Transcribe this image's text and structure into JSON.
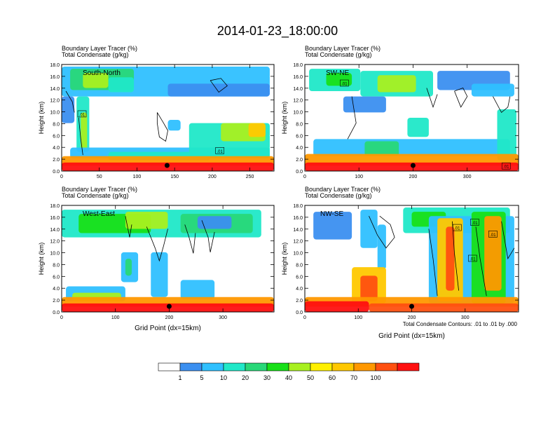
{
  "title": "2014-01-23_18:00:00",
  "footnote": "Total Condensate Contours: .01 to .01 by .000",
  "colors": [
    "#ffffff",
    "#3b8ff0",
    "#2fc0ff",
    "#20e8c8",
    "#28d878",
    "#18e018",
    "#a8f020",
    "#fff000",
    "#ffc800",
    "#ff9800",
    "#ff5010",
    "#ff1010"
  ],
  "colorbar": {
    "labels": [
      "1",
      "5",
      "10",
      "20",
      "30",
      "40",
      "50",
      "60",
      "70",
      "100"
    ]
  },
  "chart_data": [
    {
      "type": "heatmap",
      "name": "South-North",
      "label1": "Boundary Layer Tracer   (%)",
      "label2": "Total Condensate   (g/kg)",
      "ylabel": "Height (km)",
      "xlabel": "",
      "xlim": [
        0,
        282
      ],
      "ylim": [
        0,
        18
      ],
      "xticks": [
        "0",
        "50",
        "100",
        "150",
        "200",
        "250"
      ],
      "yticks": [
        "0.0",
        "2.0",
        "4.0",
        "6.0",
        "8.0",
        "10.0",
        "12.0",
        "14.0",
        "16.0",
        "18.0"
      ],
      "marker": 140,
      "contour_labels": [
        {
          "text": ".01",
          "x": 27,
          "y": 9.6
        },
        {
          "text": ".01",
          "x": 210,
          "y": 3.4
        }
      ]
    },
    {
      "type": "heatmap",
      "name": "SW-NE",
      "label1": "Boundary Layer Tracer   (%)",
      "label2": "Total Condensate   (g/kg)",
      "ylabel": "Height (km)",
      "xlabel": "",
      "xlim": [
        0,
        395
      ],
      "ylim": [
        0,
        18
      ],
      "xticks": [
        "0",
        "100",
        "200",
        "300"
      ],
      "yticks": [
        "0.0",
        "2.0",
        "4.0",
        "6.0",
        "8.0",
        "10.0",
        "12.0",
        "14.0",
        "16.0",
        "18.0"
      ],
      "marker": 200,
      "contour_labels": [
        {
          "text": ".01",
          "x": 73,
          "y": 14.8
        },
        {
          "text": ".01",
          "x": 372,
          "y": 0.8
        }
      ]
    },
    {
      "type": "heatmap",
      "name": "West-East",
      "label1": "Boundary Layer Tracer   (%)",
      "label2": "Total Condensate   (g/kg)",
      "ylabel": "Height (km)",
      "xlabel": "Grid Point (dx=15km)",
      "xlim": [
        0,
        395
      ],
      "ylim": [
        0,
        18
      ],
      "xticks": [
        "0",
        "100",
        "200",
        "300"
      ],
      "yticks": [
        "0.0",
        "2.0",
        "4.0",
        "6.0",
        "8.0",
        "10.0",
        "12.0",
        "14.0",
        "16.0",
        "18.0"
      ],
      "marker": 200,
      "contour_labels": []
    },
    {
      "type": "heatmap",
      "name": "NW-SE",
      "label1": "Boundary Layer Tracer   (%)",
      "label2": "Total Condensate   (g/kg)",
      "ylabel": "Height (km)",
      "xlabel": "Grid Point (dx=15km)",
      "xlim": [
        0,
        400
      ],
      "ylim": [
        0,
        18
      ],
      "xticks": [
        "0",
        "100",
        "200",
        "300"
      ],
      "yticks": [
        "0.0",
        "2.0",
        "4.0",
        "6.0",
        "8.0",
        "10.0",
        "12.0",
        "14.0",
        "16.0",
        "18.0"
      ],
      "marker": 200,
      "contour_labels": [
        {
          "text": ".01",
          "x": 285,
          "y": 14.2
        },
        {
          "text": ".01",
          "x": 318,
          "y": 15.1
        },
        {
          "text": ".01",
          "x": 352,
          "y": 13.1
        },
        {
          "text": ".01",
          "x": 314,
          "y": 9.0
        }
      ]
    }
  ]
}
